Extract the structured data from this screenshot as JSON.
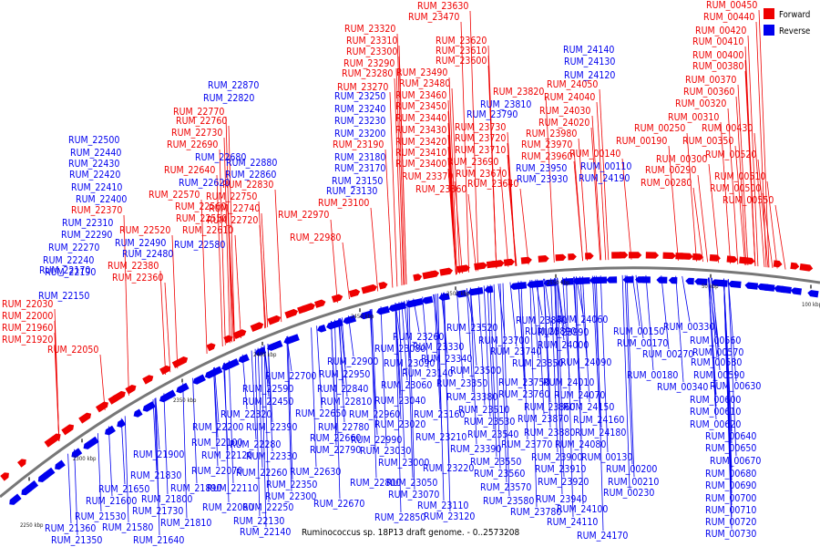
{
  "caption": "Ruminococcus sp. 18P13 draft genome. - 0..2573208",
  "legend": [
    {
      "label": "Forward",
      "color": "#ee0000"
    },
    {
      "label": "Reverse",
      "color": "#0000ee"
    }
  ],
  "colors": {
    "forward": "#ee0000",
    "reverse": "#0000ee",
    "backbone": "#777777"
  },
  "ticks": [
    "2250 kbp",
    "2300 kbp",
    "2350 kbp",
    "2400 kbp",
    "2450 kbp",
    "2500 kbp",
    "2550 kbp",
    "50 kbp",
    "100 kbp"
  ],
  "forward_labels": [
    "RUM_21920",
    "RUM_21960",
    "RUM_22000",
    "RUM_22030",
    "RUM_22050",
    "RUM_22360",
    "RUM_22380",
    "RUM_22520",
    "RUM_22370",
    "RUM_22550",
    "RUM_22560",
    "RUM_22570",
    "RUM_22610",
    "RUM_22640",
    "RUM_22690",
    "RUM_22720",
    "RUM_22730",
    "RUM_22740",
    "RUM_22750",
    "RUM_22760",
    "RUM_22770",
    "RUM_22830",
    "RUM_22970",
    "RUM_22980",
    "RUM_23100",
    "RUM_23190",
    "RUM_23270",
    "RUM_23280",
    "RUM_23290",
    "RUM_23300",
    "RUM_23310",
    "RUM_23320",
    "RUM_23360",
    "RUM_23370",
    "RUM_23400",
    "RUM_23410",
    "RUM_23420",
    "RUM_23430",
    "RUM_23440",
    "RUM_23450",
    "RUM_23460",
    "RUM_23470",
    "RUM_23480",
    "RUM_23490",
    "RUM_23600",
    "RUM_23610",
    "RUM_23620",
    "RUM_23630",
    "RUM_23640",
    "RUM_23670",
    "RUM_23690",
    "RUM_23710",
    "RUM_23720",
    "RUM_23730",
    "RUM_23820",
    "RUM_23960",
    "RUM_23970",
    "RUM_23980",
    "RUM_24020",
    "RUM_24030",
    "RUM_24040",
    "RUM_24050",
    "RUM_00140",
    "RUM_00190",
    "RUM_00250",
    "RUM_00280",
    "RUM_00290",
    "RUM_00300",
    "RUM_00310",
    "RUM_00320",
    "RUM_00350",
    "RUM_00360",
    "RUM_00370",
    "RUM_00380",
    "RUM_00400",
    "RUM_00410",
    "RUM_00420",
    "RUM_00430",
    "RUM_00440",
    "RUM_00450",
    "RUM_00500",
    "RUM_00510",
    "RUM_00520",
    "RUM_00550"
  ],
  "reverse_labels": [
    "RUM_21350",
    "RUM_21360",
    "RUM_21530",
    "RUM_21580",
    "RUM_21600",
    "RUM_21640",
    "RUM_21650",
    "RUM_21730",
    "RUM_21800",
    "RUM_21810",
    "RUM_21830",
    "RUM_21890",
    "RUM_21900",
    "RUM_22060",
    "RUM_22070",
    "RUM_22100",
    "RUM_22110",
    "RUM_22120",
    "RUM_22130",
    "RUM_22140",
    "RUM_22150",
    "RUM_22170",
    "RUM_22190",
    "RUM_22200",
    "RUM_22240",
    "RUM_22250",
    "RUM_22260",
    "RUM_22270",
    "RUM_22280",
    "RUM_22290",
    "RUM_22300",
    "RUM_22310",
    "RUM_22320",
    "RUM_22330",
    "RUM_22350",
    "RUM_22390",
    "RUM_22400",
    "RUM_22410",
    "RUM_22420",
    "RUM_22430",
    "RUM_22440",
    "RUM_22450",
    "RUM_22480",
    "RUM_22490",
    "RUM_22500",
    "RUM_22580",
    "RUM_22590",
    "RUM_22620",
    "RUM_22630",
    "RUM_22650",
    "RUM_22660",
    "RUM_22670",
    "RUM_22680",
    "RUM_22700",
    "RUM_22780",
    "RUM_22790",
    "RUM_22800",
    "RUM_22810",
    "RUM_22820",
    "RUM_22840",
    "RUM_22850",
    "RUM_22860",
    "RUM_22870",
    "RUM_22880",
    "RUM_22900",
    "RUM_22950",
    "RUM_22960",
    "RUM_22990",
    "RUM_23000",
    "RUM_23020",
    "RUM_23030",
    "RUM_23040",
    "RUM_23050",
    "RUM_23060",
    "RUM_23070",
    "RUM_23080",
    "RUM_23090",
    "RUM_23110",
    "RUM_23120",
    "RUM_23130",
    "RUM_23140",
    "RUM_23150",
    "RUM_23160",
    "RUM_23170",
    "RUM_23180",
    "RUM_23200",
    "RUM_23210",
    "RUM_23220",
    "RUM_23230",
    "RUM_23240",
    "RUM_23250",
    "RUM_23260",
    "RUM_23330",
    "RUM_23340",
    "RUM_23350",
    "RUM_23380",
    "RUM_23390",
    "RUM_23500",
    "RUM_23510",
    "RUM_23520",
    "RUM_23530",
    "RUM_23540",
    "RUM_23550",
    "RUM_23560",
    "RUM_23570",
    "RUM_23580",
    "RUM_23700",
    "RUM_23740",
    "RUM_23750",
    "RUM_23760",
    "RUM_23770",
    "RUM_23780",
    "RUM_23790",
    "RUM_23810",
    "RUM_23840",
    "RUM_23850",
    "RUM_23860",
    "RUM_23870",
    "RUM_23880",
    "RUM_23890",
    "RUM_23900",
    "RUM_23910",
    "RUM_23920",
    "RUM_23930",
    "RUM_23940",
    "RUM_23950",
    "RUM_23990",
    "RUM_24000",
    "RUM_24010",
    "RUM_24060",
    "RUM_24070",
    "RUM_24080",
    "RUM_24090",
    "RUM_24100",
    "RUM_24110",
    "RUM_24120",
    "RUM_24130",
    "RUM_24140",
    "RUM_24150",
    "RUM_24160",
    "RUM_24170",
    "RUM_24180",
    "RUM_24190",
    "RUM_00110",
    "RUM_00130",
    "RUM_00150",
    "RUM_00170",
    "RUM_00180",
    "RUM_00200",
    "RUM_00210",
    "RUM_00230",
    "RUM_00270",
    "RUM_00330",
    "RUM_00340",
    "RUM_00560",
    "RUM_00570",
    "RUM_00580",
    "RUM_00590",
    "RUM_00600",
    "RUM_00610",
    "RUM_00620",
    "RUM_00630",
    "RUM_00640",
    "RUM_00650",
    "RUM_00670",
    "RUM_00680",
    "RUM_00690",
    "RUM_00700",
    "RUM_00710",
    "RUM_00720",
    "RUM_00730"
  ]
}
